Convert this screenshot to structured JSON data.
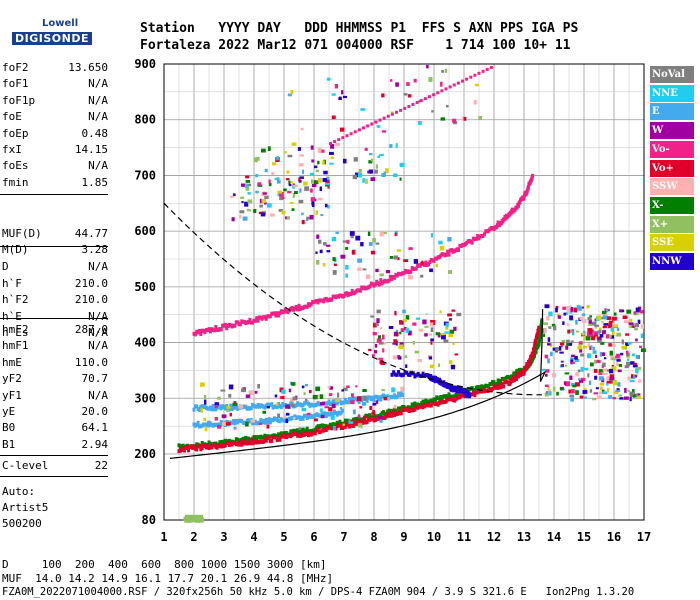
{
  "logo": {
    "small": "Lowell",
    "big": "DIGISONDE"
  },
  "header": {
    "line1": "Station   YYYY DAY   DDD HHMMSS P1  FFS S AXN PPS IGA PS",
    "line2": "Fortaleza 2022 Mar12 071 004000 RSF    1 714 100 10+ 11"
  },
  "params_group1": [
    {
      "name": "foF2",
      "value": "13.650"
    },
    {
      "name": "foF1",
      "value": "N/A"
    },
    {
      "name": "foF1p",
      "value": "N/A"
    },
    {
      "name": "foE",
      "value": "N/A"
    },
    {
      "name": "foEp",
      "value": "0.48"
    },
    {
      "name": "fxI",
      "value": "14.15"
    },
    {
      "name": "foEs",
      "value": "N/A"
    },
    {
      "name": "fmin",
      "value": "1.85"
    }
  ],
  "params_group2": [
    {
      "name": "MUF(D)",
      "value": "44.77"
    },
    {
      "name": "M(D)",
      "value": "3.28"
    },
    {
      "name": "D",
      "value": "N/A"
    }
  ],
  "params_group3": [
    {
      "name": "h`F",
      "value": "210.0"
    },
    {
      "name": "h`F2",
      "value": "210.0"
    },
    {
      "name": "h`E",
      "value": "N/A"
    },
    {
      "name": "h`Es",
      "value": "N/A"
    }
  ],
  "params_group4": [
    {
      "name": "hmF2",
      "value": "287.0"
    },
    {
      "name": "hmF1",
      "value": "N/A"
    },
    {
      "name": "hmE",
      "value": "110.0"
    },
    {
      "name": "yF2",
      "value": "70.7"
    },
    {
      "name": "yF1",
      "value": "N/A"
    },
    {
      "name": "yE",
      "value": "20.0"
    },
    {
      "name": "B0",
      "value": "64.1"
    },
    {
      "name": "B1",
      "value": "2.94"
    }
  ],
  "params_group5": [
    {
      "name": "C-level",
      "value": "22"
    }
  ],
  "autoscale": {
    "line1": "Auto:",
    "line2": "Artist5",
    "line3": "500200"
  },
  "legend": [
    {
      "label": "NoVal",
      "color": "#7f7f7f"
    },
    {
      "label": "NNE",
      "color": "#22ccee"
    },
    {
      "label": "E",
      "color": "#44aaee"
    },
    {
      "label": "W",
      "color": "#a000a0"
    },
    {
      "label": "Vo-",
      "color": "#ee2288"
    },
    {
      "label": "Vo+",
      "color": "#e0002a"
    },
    {
      "label": "SSW",
      "color": "#ffb0b0"
    },
    {
      "label": "X-",
      "color": "#007f00"
    },
    {
      "label": "X+",
      "color": "#90c060"
    },
    {
      "label": "SSE",
      "color": "#d8d000"
    },
    {
      "label": "NNW",
      "color": "#2200cc"
    }
  ],
  "footer": {
    "d_line": "D     100  200  400  600  800 1000 1500 3000 [km]",
    "muf_line": "MUF  14.0 14.2 14.9 16.1 17.7 20.1 26.9 44.8 [MHz]",
    "file_line": "FZA0M_2022071004000.RSF / 320fx256h 50 kHz 5.0 km / DPS-4 FZA0M 904 / 3.9 S 321.6 E   Ion2Png 1.3.20"
  },
  "chart_data": {
    "type": "scatter",
    "xlim": [
      1,
      17
    ],
    "ylim": [
      80,
      900
    ],
    "x_ticks": [
      1,
      2,
      3,
      4,
      5,
      6,
      7,
      8,
      9,
      10,
      11,
      12,
      13,
      14,
      15,
      16,
      17
    ],
    "y_ticks": [
      80,
      200,
      300,
      400,
      500,
      600,
      700,
      800,
      900
    ],
    "grid": true,
    "series": [
      {
        "name": "X-",
        "color": "#007f00",
        "points": [
          [
            1.5,
            212
          ],
          [
            2.5,
            218
          ],
          [
            3.5,
            224
          ],
          [
            4.5,
            232
          ],
          [
            5.5,
            240
          ],
          [
            6.5,
            250
          ],
          [
            7.5,
            262
          ],
          [
            8.5,
            276
          ],
          [
            9.5,
            290
          ],
          [
            10.5,
            304
          ],
          [
            11.5,
            318
          ],
          [
            12.5,
            336
          ],
          [
            13.2,
            360
          ],
          [
            13.5,
            400
          ],
          [
            13.6,
            440
          ]
        ]
      },
      {
        "name": "Vo+",
        "color": "#e0002a",
        "points": [
          [
            1.5,
            208
          ],
          [
            2.5,
            213
          ],
          [
            3.5,
            219
          ],
          [
            4.5,
            226
          ],
          [
            5.5,
            234
          ],
          [
            6.5,
            244
          ],
          [
            7.5,
            256
          ],
          [
            8.5,
            270
          ],
          [
            9.5,
            284
          ],
          [
            10.5,
            296
          ],
          [
            11.5,
            310
          ],
          [
            12.5,
            328
          ],
          [
            13.0,
            348
          ],
          [
            13.3,
            380
          ],
          [
            13.5,
            430
          ]
        ]
      },
      {
        "name": "Vo-",
        "color": "#ee2288",
        "points": [
          [
            2.0,
            415
          ],
          [
            3.0,
            428
          ],
          [
            4.0,
            440
          ],
          [
            5.0,
            455
          ],
          [
            6.0,
            470
          ],
          [
            7.0,
            486
          ],
          [
            8.0,
            504
          ],
          [
            9.0,
            524
          ],
          [
            10.0,
            548
          ],
          [
            11.0,
            574
          ],
          [
            12.0,
            606
          ],
          [
            12.5,
            628
          ],
          [
            13.0,
            660
          ],
          [
            13.3,
            700
          ]
        ]
      },
      {
        "name": "E",
        "color": "#44aaee",
        "points": [
          [
            2.0,
            282
          ],
          [
            3.0,
            283
          ],
          [
            4.0,
            285
          ],
          [
            5.0,
            287
          ],
          [
            6.0,
            290
          ],
          [
            7.0,
            294
          ],
          [
            8.0,
            300
          ],
          [
            9.0,
            306
          ],
          [
            2.0,
            252
          ],
          [
            3.0,
            255
          ],
          [
            4.0,
            258
          ],
          [
            5.0,
            262
          ],
          [
            6.0,
            268
          ],
          [
            7.0,
            275
          ]
        ]
      },
      {
        "name": "X+",
        "color": "#90c060",
        "points": [
          [
            1.7,
            82
          ],
          [
            2.0,
            82
          ],
          [
            2.3,
            82
          ]
        ]
      },
      {
        "name": "NNW",
        "color": "#2200cc",
        "points": [
          [
            8.6,
            345
          ],
          [
            9.8,
            340
          ],
          [
            10.2,
            330
          ],
          [
            10.6,
            318
          ],
          [
            11.0,
            312
          ],
          [
            11.2,
            305
          ]
        ]
      }
    ]
  }
}
